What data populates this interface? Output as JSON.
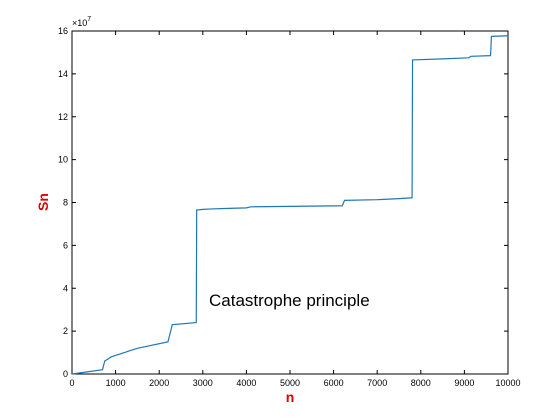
{
  "chart_data": {
    "type": "line",
    "title": "",
    "xlabel": "n",
    "ylabel": "Sn",
    "exponent_label": "×10",
    "exponent_power": "7",
    "xlim": [
      0,
      10000
    ],
    "ylim": [
      0,
      16
    ],
    "xticks": [
      "0",
      "1000",
      "2000",
      "3000",
      "4000",
      "5000",
      "6000",
      "7000",
      "8000",
      "9000",
      "10000"
    ],
    "yticks": [
      "0",
      "2",
      "4",
      "6",
      "8",
      "10",
      "12",
      "14",
      "16"
    ],
    "annotation": "Catastrophe principle",
    "grid": false,
    "series": [
      {
        "color": "#1f77b4",
        "x": [
          0,
          700,
          750,
          900,
          1500,
          2200,
          2300,
          2850,
          2860,
          3000,
          3200,
          3500,
          4000,
          4100,
          5000,
          6200,
          6250,
          7000,
          7500,
          7800,
          7810,
          8500,
          9100,
          9150,
          9600,
          9620,
          10000
        ],
        "y": [
          0.0,
          0.2,
          0.6,
          0.8,
          1.2,
          1.5,
          2.3,
          2.4,
          7.65,
          7.68,
          7.7,
          7.72,
          7.75,
          7.8,
          7.82,
          7.85,
          8.1,
          8.13,
          8.18,
          8.22,
          14.65,
          14.7,
          14.75,
          14.82,
          14.85,
          15.75,
          15.78
        ]
      }
    ],
    "colors": {
      "axis_label": "#dd0000",
      "axes": "#000000"
    }
  }
}
